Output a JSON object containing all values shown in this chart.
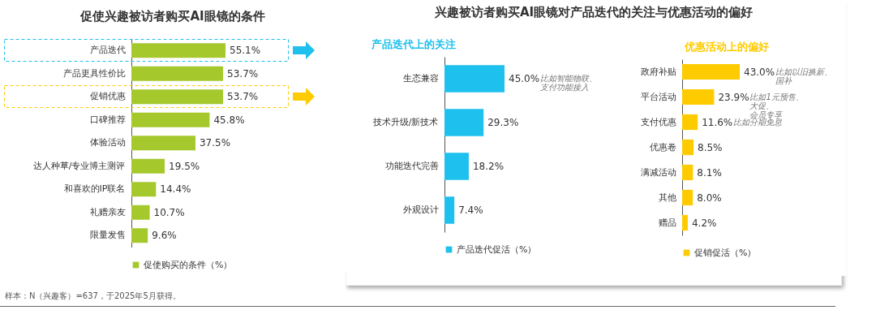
{
  "chart_data": [
    {
      "type": "bar",
      "orientation": "horizontal",
      "title": "促使兴趣被访者购买AI眼镜的条件",
      "categories": [
        "产品迭代",
        "产品更具性价比",
        "促销优惠",
        "口碑推荐",
        "体验活动",
        "达人种草/专业博主测评",
        "和喜欢的IP联名",
        "礼赠亲友",
        "限量发售"
      ],
      "series": [
        {
          "name": "促使购买的条件（%）",
          "color": "#a5c82d",
          "values": [
            55.1,
            53.7,
            53.7,
            45.8,
            37.5,
            19.5,
            14.4,
            10.7,
            9.6
          ],
          "value_labels": [
            "55.1%",
            "53.7%",
            "53.7%",
            "45.8%",
            "37.5%",
            "19.5%",
            "14.4%",
            "10.7%",
            "9.6%"
          ]
        }
      ],
      "legend": "bottom",
      "annotations": [
        "样本：N（兴趣客）=637，于2025年5月获得。"
      ]
    },
    {
      "type": "bar",
      "orientation": "horizontal",
      "title": "兴趣被访者购买AI眼镜对产品迭代的关注与优惠活动的偏好",
      "subtitle": "产品迭代上的关注",
      "categories": [
        "生态兼容",
        "技术升级/新技术",
        "功能迭代完善",
        "外观设计"
      ],
      "series": [
        {
          "name": "产品迭代促活（%）",
          "color": "#1ec0ed",
          "values": [
            45.0,
            29.3,
            18.2,
            7.4
          ],
          "value_labels": [
            "45.0%",
            "29.3%",
            "18.2%",
            "7.4%"
          ]
        }
      ],
      "legend": "bottom",
      "annotations": [
        "比如智能物联、支付功能接入"
      ]
    },
    {
      "type": "bar",
      "orientation": "horizontal",
      "title": "优惠活动上的偏好",
      "categories": [
        "政府补贴",
        "平台活动",
        "支付优惠",
        "优惠卷",
        "满减活动",
        "其他",
        "赠品"
      ],
      "series": [
        {
          "name": "促销促活（%）",
          "color": "#fecb00",
          "values": [
            43.0,
            23.9,
            11.6,
            8.5,
            8.1,
            8.0,
            4.2
          ],
          "value_labels": [
            "43.0%",
            "23.9%",
            "11.6%",
            "8.5%",
            "8.1%",
            "8.0%",
            "4.2%"
          ]
        }
      ],
      "legend": "bottom",
      "annotations": [
        "比如以旧换新、国补",
        "比如1元预售、大促、会员专享",
        "比如分期免息"
      ]
    }
  ]
}
